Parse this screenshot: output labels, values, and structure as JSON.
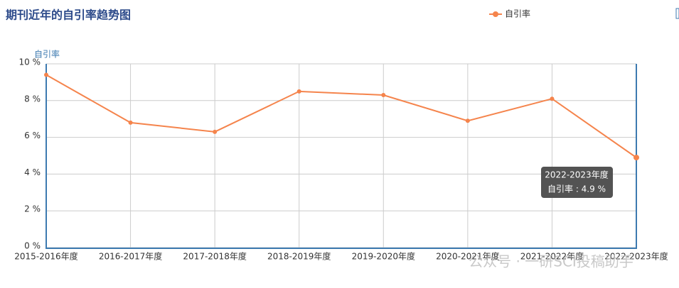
{
  "chart_data": {
    "type": "line",
    "title": "期刊近年的自引率趋势图",
    "y_label": "自引率",
    "categories": [
      "2015-2016年度",
      "2016-2017年度",
      "2017-2018年度",
      "2018-2019年度",
      "2019-2020年度",
      "2020-2021年度",
      "2021-2022年度",
      "2022-2023年度"
    ],
    "series": [
      {
        "name": "自引率",
        "color": "#f5844c",
        "values": [
          9.4,
          6.8,
          6.3,
          8.5,
          8.3,
          6.9,
          8.1,
          4.9
        ]
      }
    ],
    "ylim": [
      0,
      10
    ],
    "yticks": [
      {
        "value": 0,
        "label": "0 %"
      },
      {
        "value": 2,
        "label": "2 %"
      },
      {
        "value": 4,
        "label": "4 %"
      },
      {
        "value": 6,
        "label": "6 %"
      },
      {
        "value": 8,
        "label": "8 %"
      },
      {
        "value": 10,
        "label": "10 %"
      }
    ],
    "grid": true,
    "tooltip": {
      "title": "2022-2023年度",
      "text": "自引率 : 4.9 %"
    }
  },
  "watermark": "公众号 · 一研SCI投稿助手"
}
